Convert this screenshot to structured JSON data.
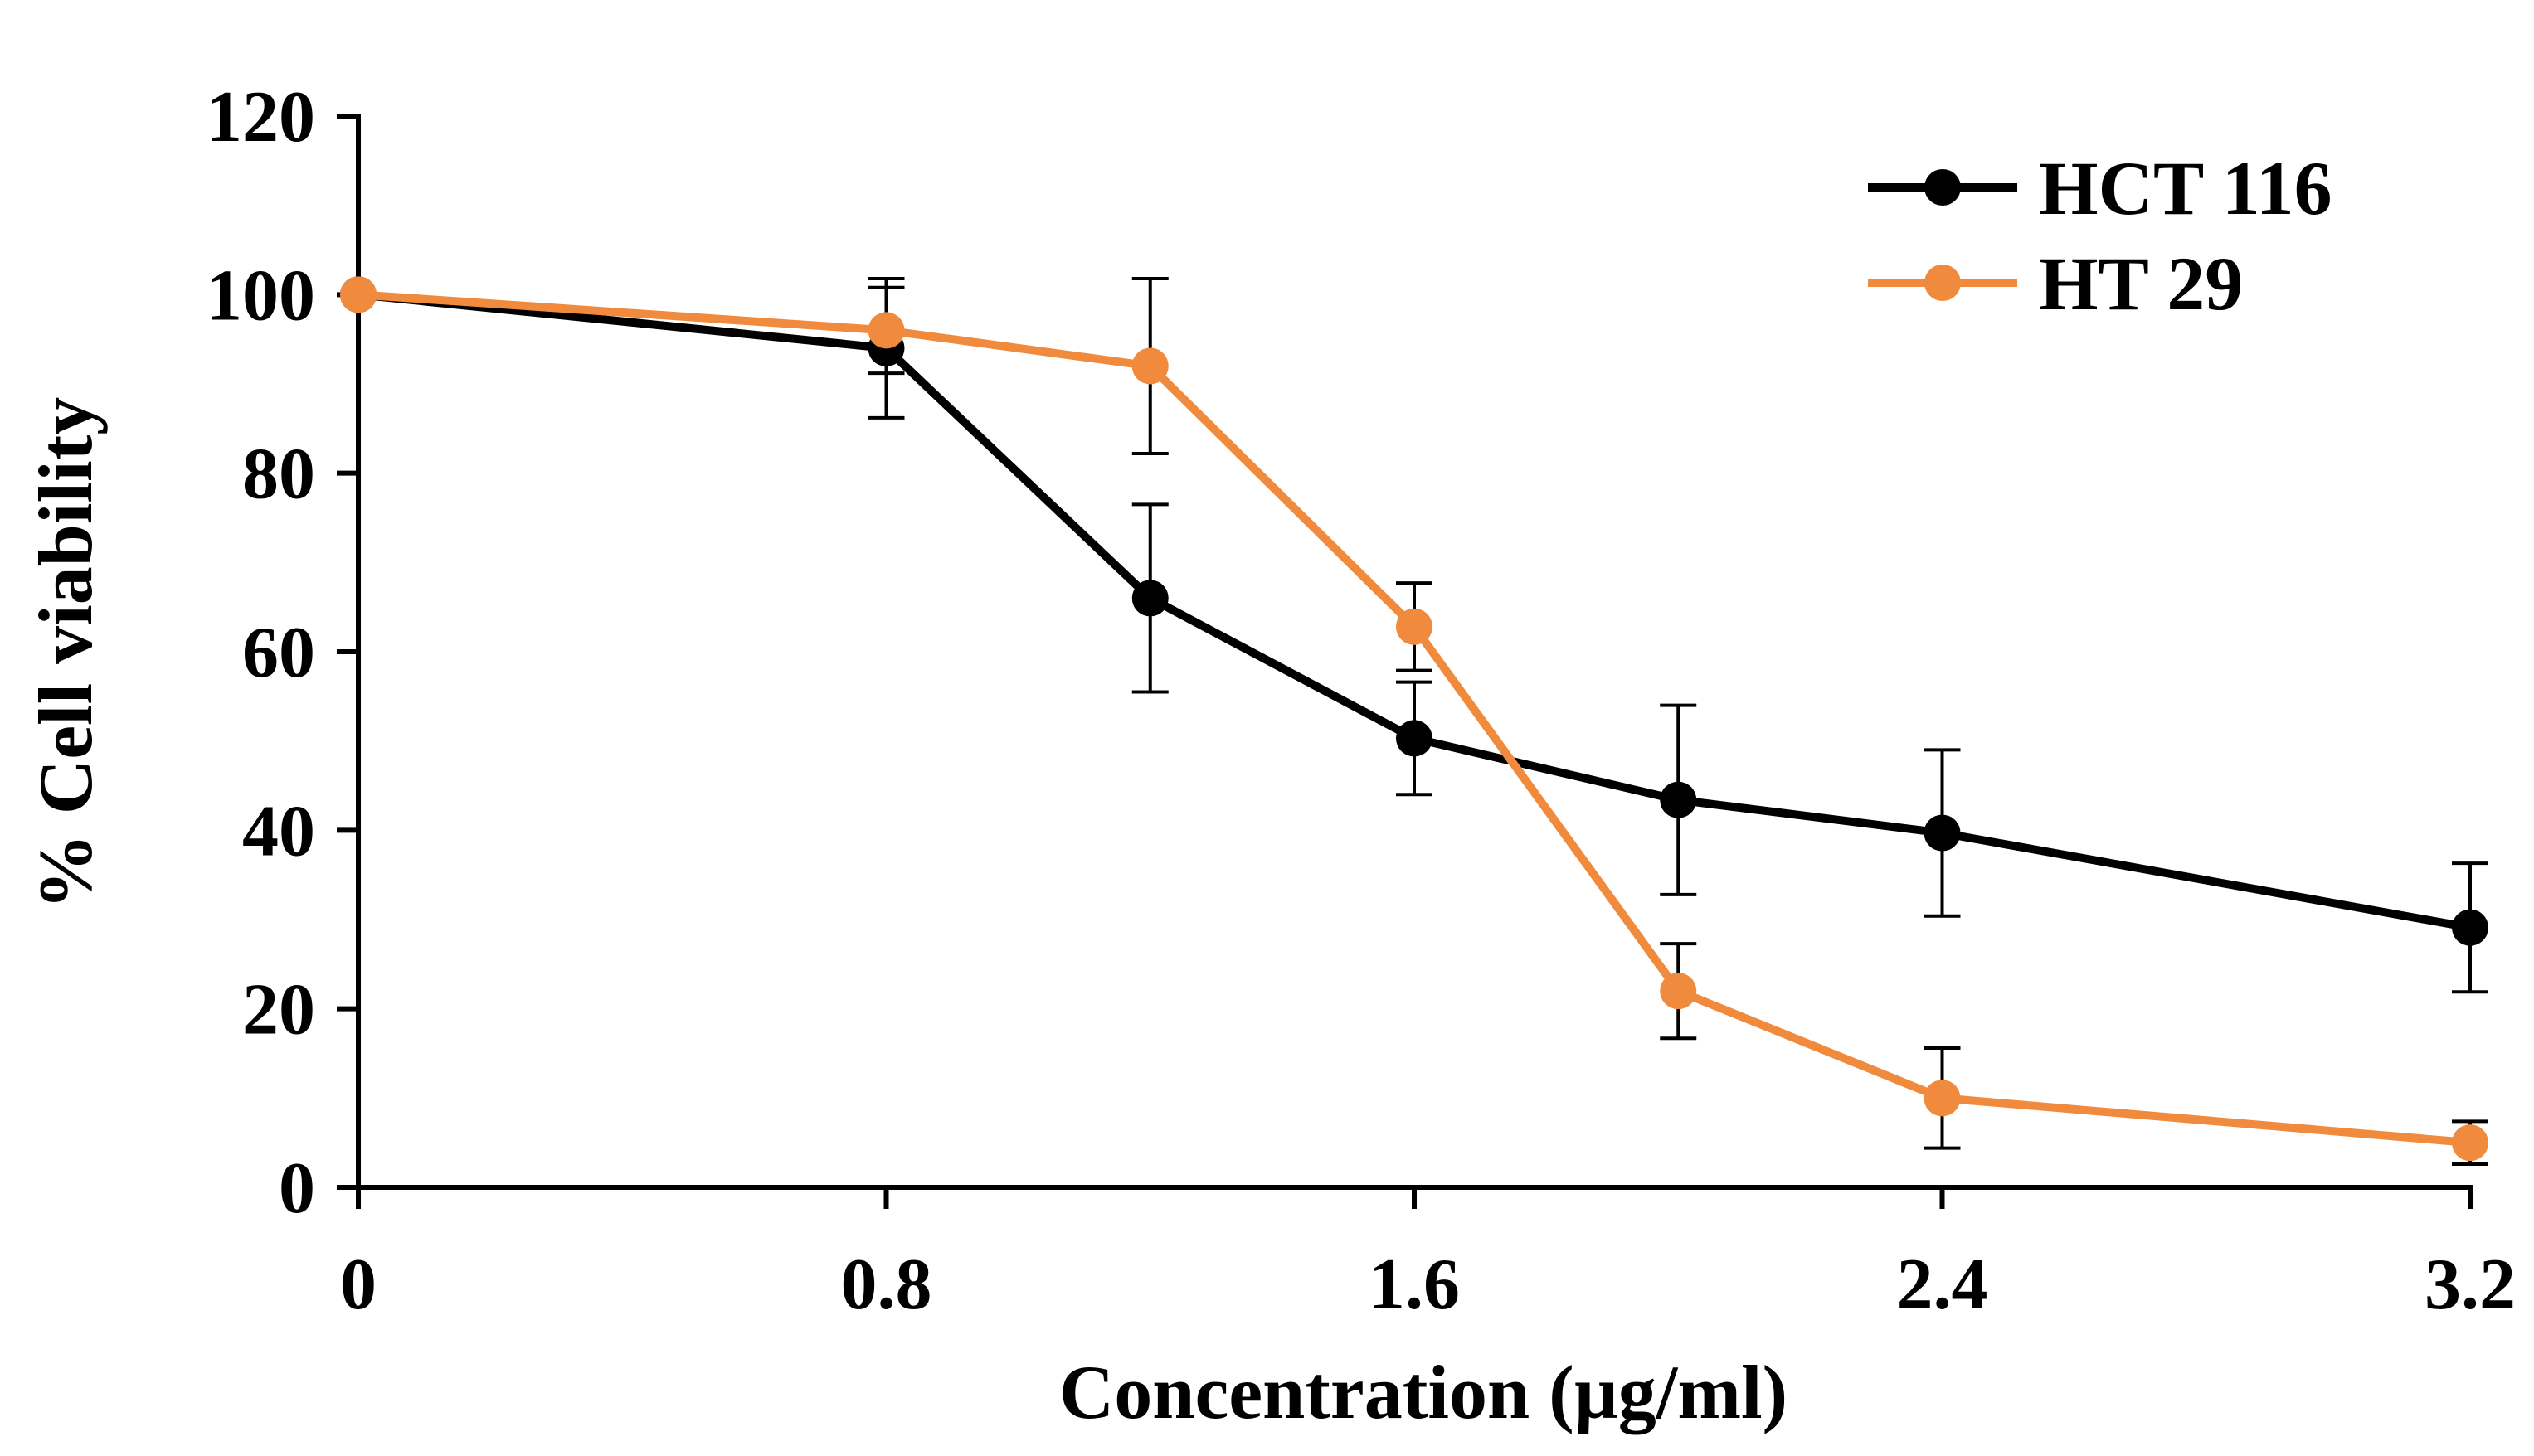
{
  "chart_data": {
    "type": "line",
    "title": "",
    "xlabel": "Concentration (µg/ml)",
    "ylabel": "% Cell viability",
    "xlim": [
      0,
      3.2
    ],
    "ylim": [
      0,
      120
    ],
    "x_ticks": [
      0,
      0.8,
      1.6,
      2.4,
      3.2
    ],
    "x_tick_labels": [
      "0",
      "0.8",
      "1.6",
      "2.4",
      "3.2"
    ],
    "y_ticks": [
      0,
      20,
      40,
      60,
      80,
      100,
      120
    ],
    "y_tick_labels": [
      "0",
      "20",
      "40",
      "60",
      "80",
      "100",
      "120"
    ],
    "grid": false,
    "legend_position": "top-right",
    "series": [
      {
        "name": "HCT 116",
        "color": "#000000",
        "x": [
          0,
          0.8,
          1.2,
          1.6,
          2.0,
          2.4,
          3.2
        ],
        "y": [
          100,
          94,
          66,
          50.3,
          43.4,
          39.7,
          29.1
        ],
        "err": [
          0,
          7.8,
          10.5,
          6.3,
          10.6,
          9.3,
          7.2
        ]
      },
      {
        "name": "HT 29",
        "color": "#F08A3C",
        "x": [
          0,
          0.8,
          1.2,
          1.6,
          2.0,
          2.4,
          3.2
        ],
        "y": [
          100,
          96,
          92,
          62.8,
          22,
          10,
          5
        ],
        "err": [
          0,
          4.8,
          9.8,
          4.9,
          5.3,
          5.6,
          2.4
        ]
      }
    ]
  }
}
